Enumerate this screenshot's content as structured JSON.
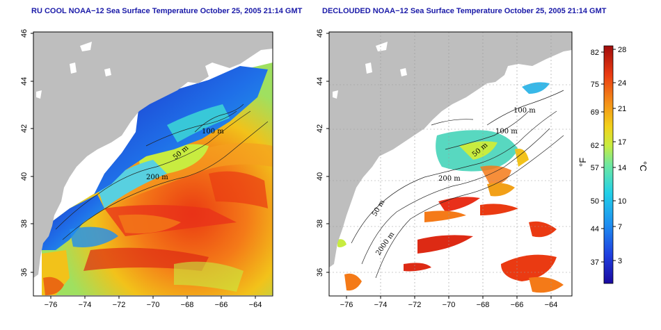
{
  "left_panel": {
    "title": "RU COOL NOAA−12 Sea Surface Temperature October 25, 2005 21:14 GMT",
    "x_ticks": [
      "−76",
      "−74",
      "−72",
      "−70",
      "−68",
      "−66",
      "−64"
    ],
    "y_ticks": [
      "46",
      "44",
      "42",
      "40",
      "38",
      "36"
    ],
    "contour_labels": [
      "100 m",
      "50 m",
      "200 m"
    ]
  },
  "right_panel": {
    "title": "DECLOUDED NOAA−12 Sea Surface Temperature October 25, 2005 21:14 GMT",
    "x_ticks": [
      "−76",
      "−74",
      "−72",
      "−70",
      "−68",
      "−66",
      "−64"
    ],
    "y_ticks": [
      "46",
      "44",
      "42",
      "40",
      "38",
      "36"
    ],
    "contour_labels": [
      "100 m",
      "100 m",
      "50 m",
      "200 m",
      "50 m",
      "2000 m"
    ]
  },
  "colorbar": {
    "fahrenheit_ticks": [
      "82",
      "75",
      "69",
      "62",
      "57",
      "50",
      "44",
      "37"
    ],
    "celsius_ticks": [
      "28",
      "24",
      "21",
      "17",
      "14",
      "10",
      "7",
      "3"
    ],
    "fahrenheit_label": "°F",
    "celsius_label": "°C"
  },
  "colors": {
    "land": "#bebebe",
    "ocean_bg": "#ffffff",
    "title": "#1a1aa8"
  }
}
